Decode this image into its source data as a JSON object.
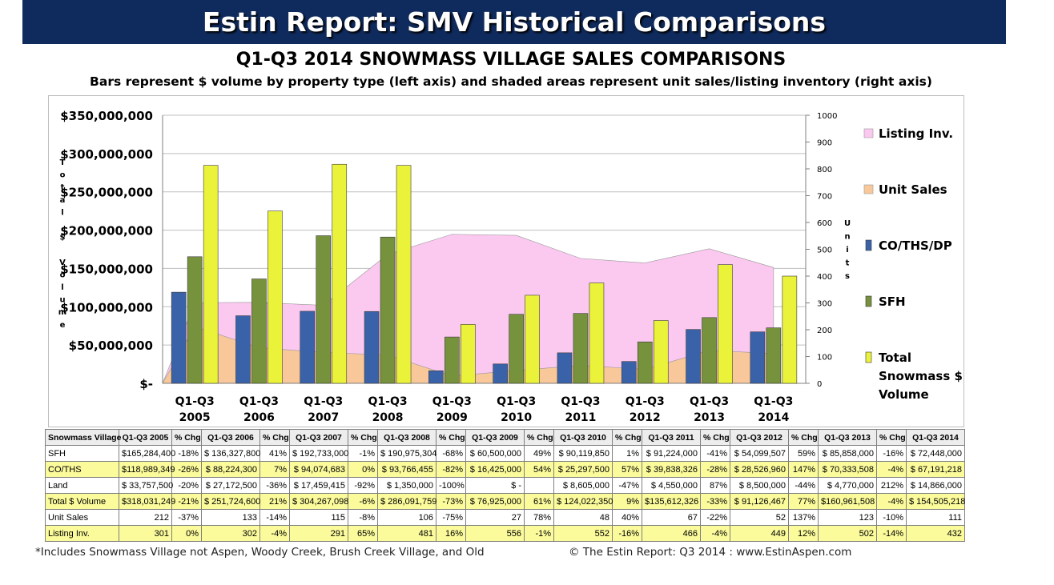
{
  "banner_title": "Estin Report: SMV Historical Comparisons",
  "chart_data": {
    "type": "bar",
    "title": "Q1-Q3 2014 SNOWMASS VILLAGE SALES COMPARISONS",
    "subtitle": "Bars represent $ volume by property type (left axis) and shaded areas represent unit sales/listing inventory (right axis)",
    "ylabel": "Total $ Volume",
    "y2label": "Units",
    "ylim": [
      0,
      350000000
    ],
    "y2lim": [
      0,
      1000
    ],
    "yticks": [
      "$350,000,000",
      "$300,000,000",
      "$250,000,000",
      "$200,000,000",
      "$150,000,000",
      "$100,000,000",
      "$50,000,000",
      "$-"
    ],
    "y2ticks": [
      "1000",
      "900",
      "800",
      "700",
      "600",
      "500",
      "400",
      "300",
      "200",
      "100",
      "0"
    ],
    "categories": [
      [
        "Q1-Q3",
        "2005"
      ],
      [
        "Q1-Q3",
        "2006"
      ],
      [
        "Q1-Q3",
        "2007"
      ],
      [
        "Q1-Q3",
        "2008"
      ],
      [
        "Q1-Q3",
        "2009"
      ],
      [
        "Q1-Q3",
        "2010"
      ],
      [
        "Q1-Q3",
        "2011"
      ],
      [
        "Q1-Q3",
        "2012"
      ],
      [
        "Q1-Q3",
        "2013"
      ],
      [
        "Q1-Q3",
        "2014"
      ]
    ],
    "series": [
      {
        "name": "CO/THS/DP",
        "kind": "bar",
        "axis": "left",
        "color": "#3a62a8",
        "values": [
          118989349,
          88224300,
          94074683,
          93766455,
          16425000,
          25297500,
          39838326,
          28526960,
          70333508,
          67191218
        ]
      },
      {
        "name": "SFH",
        "kind": "bar",
        "axis": "left",
        "color": "#76923c",
        "values": [
          165284400,
          136327800,
          192733000,
          190975304,
          60500000,
          90119850,
          91224000,
          54099507,
          85858000,
          72448000
        ]
      },
      {
        "name": "Total Snowmass $ Volume",
        "kind": "bar",
        "axis": "left",
        "color": "#eaf23a",
        "values": [
          284500000,
          225000000,
          286000000,
          284500000,
          76925000,
          115000000,
          131000000,
          82000000,
          155000000,
          140000000
        ]
      },
      {
        "name": "Listing Inv.",
        "kind": "area",
        "axis": "right",
        "color": "#fbc8f0",
        "values": [
          301,
          302,
          291,
          481,
          556,
          552,
          466,
          449,
          502,
          432
        ]
      },
      {
        "name": "Unit Sales",
        "kind": "area",
        "axis": "right",
        "color": "#f8c79a",
        "values": [
          212,
          133,
          115,
          106,
          27,
          48,
          67,
          52,
          123,
          111
        ]
      }
    ],
    "legend": [
      "Listing Inv.",
      "Unit Sales",
      "CO/THS/DP",
      "SFH",
      "Total Snowmass $ Volume"
    ],
    "legend_position": "right"
  },
  "table": {
    "headers": [
      "Snowmass Village",
      "Q1-Q3 2005",
      "% Chg",
      "Q1-Q3 2006",
      "% Chg",
      "Q1-Q3 2007",
      "% Chg",
      "Q1-Q3 2008",
      "% Chg",
      "Q1-Q3 2009",
      "% Chg",
      "Q1-Q3 2010",
      "% Chg",
      "Q1-Q3 2011",
      "% Chg",
      "Q1-Q3 2012",
      "% Chg",
      "Q1-Q3 2013",
      "% Chg",
      "Q1-Q3 2014"
    ],
    "rows": [
      {
        "highlight": false,
        "cells": [
          "SFH",
          "$165,284,400",
          "-18%",
          "$ 136,327,800",
          "41%",
          "$ 192,733,000",
          "-1%",
          "$ 190,975,304",
          "-68%",
          "$ 60,500,000",
          "49%",
          "$ 90,119,850",
          "1%",
          "$ 91,224,000",
          "-41%",
          "$ 54,099,507",
          "59%",
          "$ 85,858,000",
          "-16%",
          "$ 72,448,000"
        ]
      },
      {
        "highlight": true,
        "cells": [
          "CO/THS",
          "$118,989,349",
          "-26%",
          "$ 88,224,300",
          "7%",
          "$ 94,074,683",
          "0%",
          "$ 93,766,455",
          "-82%",
          "$ 16,425,000",
          "54%",
          "$ 25,297,500",
          "57%",
          "$ 39,838,326",
          "-28%",
          "$ 28,526,960",
          "147%",
          "$ 70,333,508",
          "-4%",
          "$ 67,191,218"
        ]
      },
      {
        "highlight": false,
        "cells": [
          "Land",
          "$ 33,757,500",
          "-20%",
          "$ 27,172,500",
          "-36%",
          "$ 17,459,415",
          "-92%",
          "$ 1,350,000",
          "-100%",
          "$ -",
          "",
          "$ 8,605,000",
          "-47%",
          "$ 4,550,000",
          "87%",
          "$ 8,500,000",
          "-44%",
          "$ 4,770,000",
          "212%",
          "$ 14,866,000"
        ]
      },
      {
        "highlight": true,
        "cells": [
          "Total $ Volume",
          "$318,031,249",
          "-21%",
          "$ 251,724,600",
          "21%",
          "$ 304,267,098",
          "-6%",
          "$ 286,091,759",
          "-73%",
          "$ 76,925,000",
          "61%",
          "$ 124,022,350",
          "9%",
          "$135,612,326",
          "-33%",
          "$ 91,126,467",
          "77%",
          "$160,961,508",
          "-4%",
          "$ 154,505,218"
        ]
      },
      {
        "highlight": false,
        "cells": [
          "Unit Sales",
          "212",
          "-37%",
          "133",
          "-14%",
          "115",
          "-8%",
          "106",
          "-75%",
          "27",
          "78%",
          "48",
          "40%",
          "67",
          "-22%",
          "52",
          "137%",
          "123",
          "-10%",
          "111"
        ]
      },
      {
        "highlight": true,
        "cells": [
          "Listing Inv.",
          "301",
          "0%",
          "302",
          "-4%",
          "291",
          "65%",
          "481",
          "16%",
          "556",
          "-1%",
          "552",
          "-16%",
          "466",
          "-4%",
          "449",
          "12%",
          "502",
          "-14%",
          "432"
        ]
      }
    ]
  },
  "footnote": "*Includes Snowmass Village not Aspen, Woody Creek, Brush Creek Village, and Old",
  "copyright": "© The Estin Report: Q3 2014 : www.EstinAspen.com"
}
